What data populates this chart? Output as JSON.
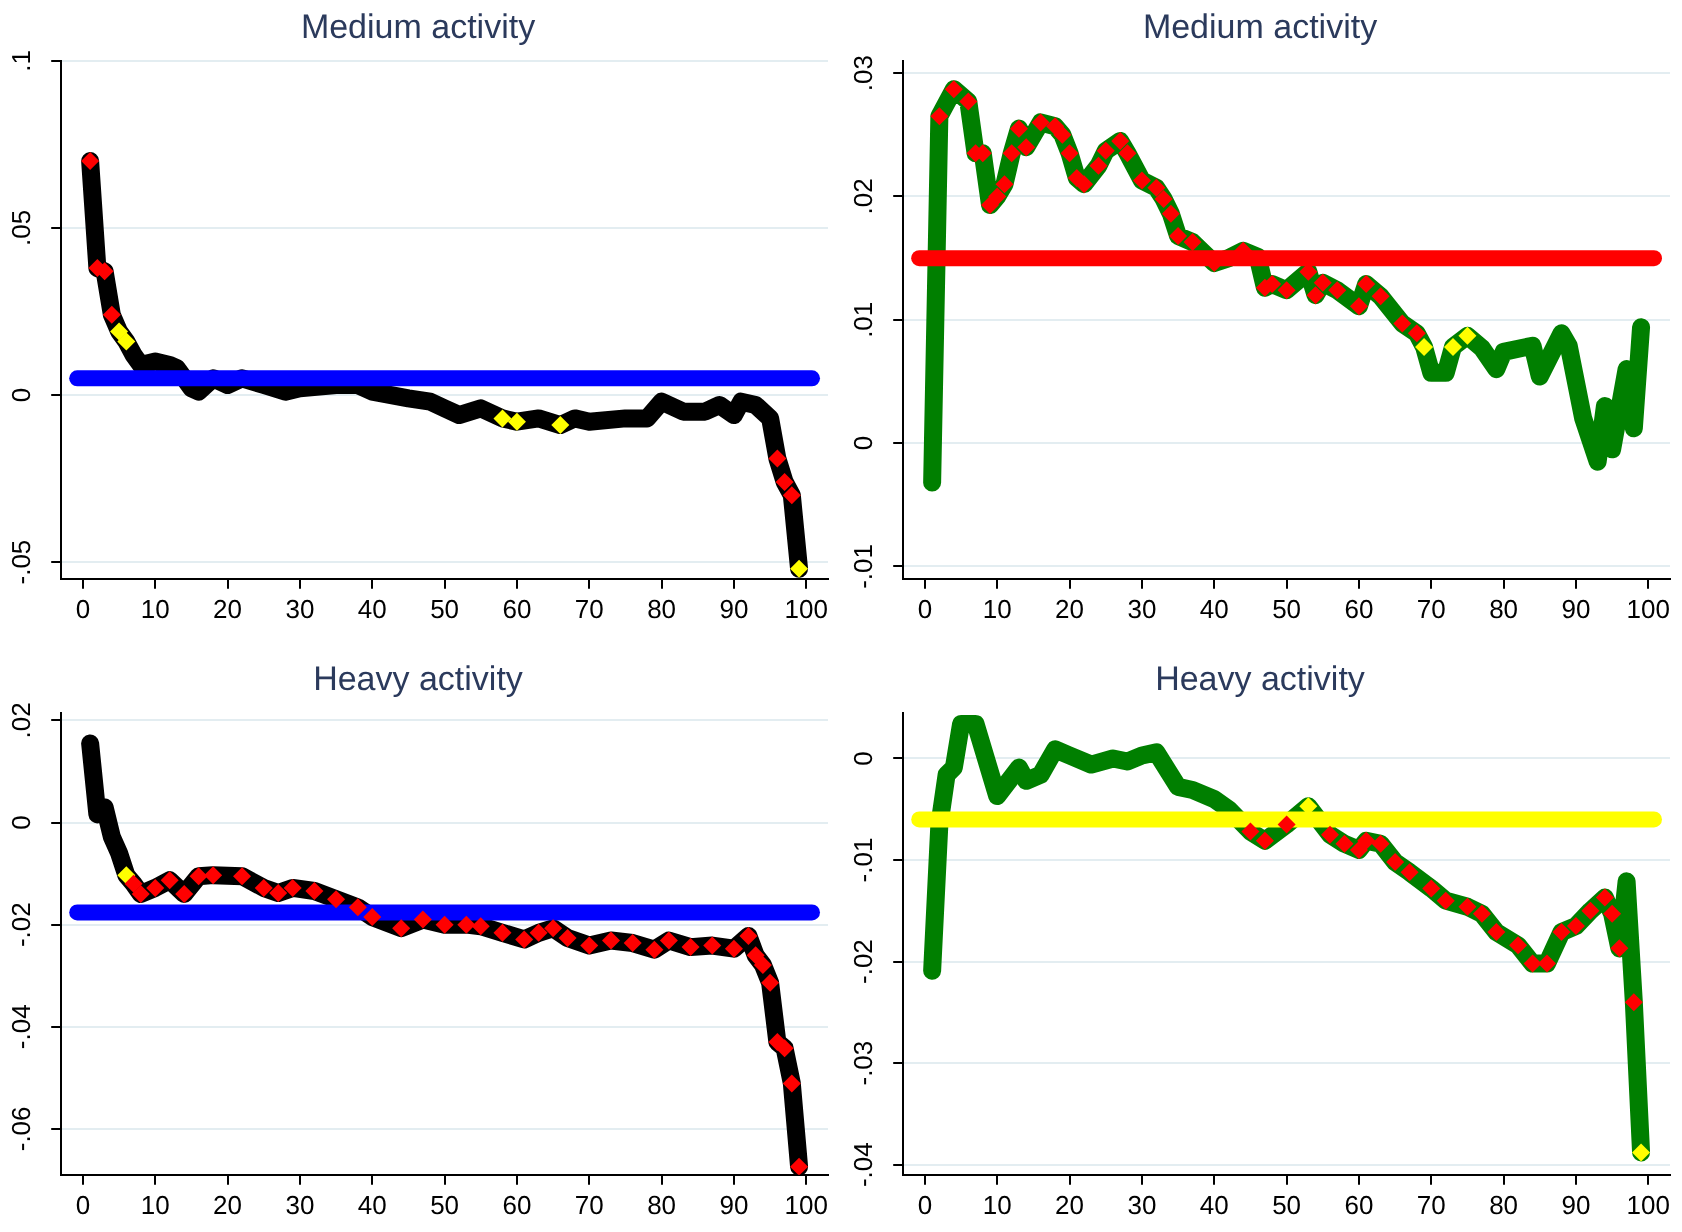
{
  "chart_data": [
    {
      "type": "line",
      "title": "Medium activity",
      "xlim": [
        -3,
        103
      ],
      "xticks": [
        0,
        10,
        20,
        30,
        40,
        50,
        60,
        70,
        80,
        90,
        100
      ],
      "ylim": [
        -0.055,
        0.1
      ],
      "yticks": [
        {
          "value": -0.05,
          "label": "-.05"
        },
        {
          "value": 0,
          "label": "0"
        },
        {
          "value": 0.05,
          "label": ".05"
        },
        {
          "value": 0.1,
          "label": ".1"
        }
      ],
      "grid": "y",
      "series": [
        {
          "type": "line",
          "marker": "none",
          "color": "#000000",
          "x": [
            1,
            2,
            3,
            4,
            5,
            6,
            7,
            8,
            10,
            12,
            13,
            15,
            16,
            18,
            20,
            22,
            25,
            28,
            30,
            35,
            38,
            40,
            45,
            48,
            50,
            52,
            55,
            58,
            60,
            63,
            66,
            68,
            70,
            75,
            78,
            80,
            83,
            86,
            88,
            90,
            91,
            93,
            95,
            96,
            97,
            98,
            99
          ],
          "values": [
            0.07,
            0.038,
            0.037,
            0.024,
            0.019,
            0.016,
            0.012,
            0.009,
            0.01,
            0.009,
            0.008,
            0.002,
            0.001,
            0.005,
            0.003,
            0.005,
            0.003,
            0.001,
            0.002,
            0.003,
            0.003,
            0.001,
            -0.001,
            -0.002,
            -0.004,
            -0.006,
            -0.004,
            -0.007,
            -0.008,
            -0.007,
            -0.009,
            -0.007,
            -0.008,
            -0.007,
            -0.007,
            -0.002,
            -0.005,
            -0.005,
            -0.003,
            -0.006,
            -0.002,
            -0.003,
            -0.007,
            -0.019,
            -0.026,
            -0.03,
            -0.052
          ]
        },
        {
          "type": "scatter",
          "marker": "diamond",
          "color": "#ff0000",
          "x": [
            1,
            2,
            3,
            4,
            96,
            97,
            98
          ],
          "values": [
            0.07,
            0.038,
            0.037,
            0.024,
            -0.019,
            -0.026,
            -0.03
          ]
        },
        {
          "type": "scatter",
          "marker": "diamond",
          "color": "#ffff00",
          "x": [
            5,
            6,
            58,
            60,
            66,
            99
          ],
          "values": [
            0.019,
            0.016,
            -0.007,
            -0.008,
            -0.009,
            -0.052
          ]
        }
      ],
      "ref_lines": [
        {
          "axis": "y",
          "value": 0.005,
          "color": "#0000ff"
        }
      ]
    },
    {
      "type": "line",
      "title": "Medium activity",
      "xlim": [
        -3,
        103
      ],
      "xticks": [
        0,
        10,
        20,
        30,
        40,
        50,
        60,
        70,
        80,
        90,
        100
      ],
      "ylim": [
        -0.011,
        0.031
      ],
      "yticks": [
        {
          "value": -0.01,
          "label": "-.01"
        },
        {
          "value": 0,
          "label": "0"
        },
        {
          "value": 0.01,
          "label": ".01"
        },
        {
          "value": 0.02,
          "label": ".02"
        },
        {
          "value": 0.03,
          "label": ".03"
        }
      ],
      "grid": "y",
      "series": [
        {
          "type": "line",
          "marker": "none",
          "color": "#007f00",
          "x": [
            1,
            2,
            4,
            6,
            7,
            8,
            9,
            10,
            11,
            12,
            13,
            14,
            16,
            18,
            19,
            20,
            21,
            22,
            24,
            25,
            27,
            28,
            30,
            32,
            33,
            34,
            35,
            37,
            40,
            42,
            44,
            46,
            47,
            48,
            50,
            53,
            54,
            55,
            57,
            60,
            61,
            63,
            66,
            68,
            69,
            70,
            72,
            73,
            75,
            77,
            79,
            80,
            84,
            85,
            88,
            89,
            91,
            93,
            94,
            95,
            97,
            98,
            99
          ],
          "values": [
            -0.0032,
            0.0265,
            0.0287,
            0.0277,
            0.0235,
            0.0235,
            0.0193,
            0.02,
            0.021,
            0.0235,
            0.0255,
            0.024,
            0.026,
            0.0257,
            0.025,
            0.0235,
            0.0215,
            0.021,
            0.0225,
            0.0237,
            0.0245,
            0.0235,
            0.0213,
            0.0207,
            0.0198,
            0.0186,
            0.0168,
            0.0163,
            0.0146,
            0.015,
            0.0156,
            0.0151,
            0.0126,
            0.0129,
            0.0124,
            0.0139,
            0.012,
            0.013,
            0.0124,
            0.0111,
            0.0129,
            0.0119,
            0.0097,
            0.0089,
            0.0078,
            0.0057,
            0.0057,
            0.0078,
            0.0087,
            0.0077,
            0.006,
            0.0074,
            0.0079,
            0.0054,
            0.0089,
            0.0079,
            0.002,
            -0.0015,
            0.003,
            -0.0005,
            0.006,
            0.0012,
            0.0094
          ]
        },
        {
          "type": "scatter",
          "marker": "diamond",
          "color": "#ff0000",
          "x": [
            2,
            4,
            6,
            7,
            8,
            9,
            10,
            11,
            12,
            13,
            14,
            16,
            18,
            19,
            20,
            21,
            22,
            24,
            25,
            27,
            28,
            30,
            32,
            33,
            34,
            35,
            37,
            40,
            44,
            47,
            48,
            50,
            53,
            54,
            55,
            57,
            60,
            61,
            63,
            66,
            68
          ],
          "values": [
            0.0265,
            0.0287,
            0.0277,
            0.0235,
            0.0235,
            0.0193,
            0.02,
            0.021,
            0.0235,
            0.0255,
            0.024,
            0.026,
            0.0257,
            0.025,
            0.0235,
            0.0215,
            0.021,
            0.0225,
            0.0237,
            0.0245,
            0.0235,
            0.0213,
            0.0207,
            0.0198,
            0.0186,
            0.0168,
            0.0163,
            0.0146,
            0.0156,
            0.0126,
            0.0129,
            0.0124,
            0.0139,
            0.012,
            0.013,
            0.0124,
            0.0111,
            0.0129,
            0.0119,
            0.0097,
            0.0089
          ]
        },
        {
          "type": "scatter",
          "marker": "diamond",
          "color": "#ffff00",
          "x": [
            69,
            73,
            75
          ],
          "values": [
            0.0078,
            0.0078,
            0.0087
          ]
        }
      ],
      "ref_lines": [
        {
          "axis": "y",
          "value": 0.015,
          "color": "#ff0000"
        }
      ]
    },
    {
      "type": "line",
      "title": "Heavy activity",
      "xlim": [
        -3,
        103
      ],
      "xticks": [
        0,
        10,
        20,
        30,
        40,
        50,
        60,
        70,
        80,
        90,
        100
      ],
      "ylim": [
        -0.069,
        0.0215
      ],
      "yticks": [
        {
          "value": -0.06,
          "label": "-.06"
        },
        {
          "value": -0.04,
          "label": "-.04"
        },
        {
          "value": -0.02,
          "label": "-.02"
        },
        {
          "value": 0,
          "label": "0"
        },
        {
          "value": 0.02,
          "label": ".02"
        }
      ],
      "grid": "y",
      "series": [
        {
          "type": "line",
          "marker": "none",
          "color": "#000000",
          "x": [
            1,
            2,
            3,
            4,
            5,
            6,
            7,
            8,
            10,
            12,
            14,
            16,
            18,
            22,
            25,
            27,
            29,
            32,
            35,
            38,
            40,
            44,
            47,
            50,
            53,
            55,
            58,
            61,
            63,
            65,
            67,
            70,
            73,
            76,
            79,
            81,
            84,
            87,
            90,
            92,
            93,
            94,
            95,
            96,
            97,
            98,
            99
          ],
          "values": [
            0.0155,
            0.0016,
            0.003,
            -0.0028,
            -0.006,
            -0.0103,
            -0.012,
            -0.014,
            -0.0128,
            -0.0113,
            -0.014,
            -0.0105,
            -0.0103,
            -0.0105,
            -0.0128,
            -0.0138,
            -0.0128,
            -0.0134,
            -0.015,
            -0.0166,
            -0.0185,
            -0.0207,
            -0.019,
            -0.02,
            -0.02,
            -0.0203,
            -0.0216,
            -0.0229,
            -0.0216,
            -0.0207,
            -0.0226,
            -0.0241,
            -0.0231,
            -0.0236,
            -0.0249,
            -0.0231,
            -0.0244,
            -0.0241,
            -0.0247,
            -0.0222,
            -0.026,
            -0.0279,
            -0.0314,
            -0.043,
            -0.0442,
            -0.0511,
            -0.0674
          ]
        },
        {
          "type": "scatter",
          "marker": "diamond",
          "color": "#ff0000",
          "x": [
            7,
            8,
            10,
            12,
            14,
            16,
            18,
            22,
            25,
            27,
            29,
            32,
            35,
            38,
            40,
            44,
            47,
            50,
            53,
            55,
            58,
            61,
            63,
            65,
            67,
            70,
            73,
            76,
            79,
            81,
            84,
            87,
            90,
            92,
            93,
            94,
            95,
            96,
            97,
            98,
            99
          ],
          "values": [
            -0.012,
            -0.014,
            -0.0128,
            -0.0113,
            -0.014,
            -0.0105,
            -0.0103,
            -0.0105,
            -0.0128,
            -0.0138,
            -0.0128,
            -0.0134,
            -0.015,
            -0.0166,
            -0.0185,
            -0.0207,
            -0.019,
            -0.02,
            -0.02,
            -0.0203,
            -0.0216,
            -0.0229,
            -0.0216,
            -0.0207,
            -0.0226,
            -0.0241,
            -0.0231,
            -0.0236,
            -0.0249,
            -0.0231,
            -0.0244,
            -0.0241,
            -0.0247,
            -0.0222,
            -0.026,
            -0.0279,
            -0.0314,
            -0.043,
            -0.0442,
            -0.0511,
            -0.0674
          ]
        },
        {
          "type": "scatter",
          "marker": "diamond",
          "color": "#ffff00",
          "x": [
            6
          ],
          "values": [
            -0.0103
          ]
        }
      ],
      "ref_lines": [
        {
          "axis": "y",
          "value": -0.0176,
          "color": "#0000ff"
        }
      ]
    },
    {
      "type": "line",
      "title": "Heavy activity",
      "xlim": [
        -3,
        103
      ],
      "xticks": [
        0,
        10,
        20,
        30,
        40,
        50,
        60,
        70,
        80,
        90,
        100
      ],
      "ylim": [
        -0.041,
        0.0045
      ],
      "yticks": [
        {
          "value": -0.04,
          "label": "-.04"
        },
        {
          "value": -0.03,
          "label": "-.03"
        },
        {
          "value": -0.02,
          "label": "-.02"
        },
        {
          "value": -0.01,
          "label": "-.01"
        },
        {
          "value": 0,
          "label": "0"
        }
      ],
      "grid": "y",
      "series": [
        {
          "type": "line",
          "marker": "none",
          "color": "#007f00",
          "x": [
            1,
            2,
            3,
            4,
            5,
            7,
            10,
            13,
            14,
            16,
            18,
            20,
            23,
            26,
            28,
            30,
            32,
            35,
            37,
            40,
            42,
            45,
            47,
            50,
            53,
            56,
            58,
            60,
            61,
            63,
            65,
            67,
            70,
            72,
            75,
            77,
            79,
            82,
            84,
            86,
            88,
            90,
            92,
            94,
            95,
            96,
            97,
            98,
            99
          ],
          "values": [
            -0.0209,
            -0.0065,
            -0.0016,
            -0.0009,
            0.0034,
            0.0034,
            -0.0037,
            -0.0009,
            -0.0022,
            -0.0016,
            0.0009,
            0.0003,
            -0.0006,
            0,
            -0.0003,
            0.0003,
            0.0006,
            -0.0028,
            -0.0031,
            -0.004,
            -0.005,
            -0.0072,
            -0.0081,
            -0.0065,
            -0.0047,
            -0.0075,
            -0.0084,
            -0.009,
            -0.0081,
            -0.0084,
            -0.0102,
            -0.0112,
            -0.0128,
            -0.014,
            -0.0146,
            -0.0153,
            -0.0171,
            -0.0184,
            -0.0202,
            -0.0202,
            -0.0171,
            -0.0165,
            -0.015,
            -0.0137,
            -0.0153,
            -0.0187,
            -0.0121,
            -0.024,
            -0.0388
          ]
        },
        {
          "type": "scatter",
          "marker": "diamond",
          "color": "#ff0000",
          "x": [
            45,
            47,
            50,
            56,
            58,
            60,
            61,
            63,
            65,
            67,
            70,
            72,
            75,
            77,
            79,
            82,
            84,
            86,
            88,
            90,
            92,
            94,
            95,
            96,
            98
          ],
          "values": [
            -0.0072,
            -0.0081,
            -0.0065,
            -0.0075,
            -0.0084,
            -0.009,
            -0.0081,
            -0.0084,
            -0.0102,
            -0.0112,
            -0.0128,
            -0.014,
            -0.0146,
            -0.0153,
            -0.0171,
            -0.0184,
            -0.0202,
            -0.0202,
            -0.0171,
            -0.0165,
            -0.015,
            -0.0137,
            -0.0153,
            -0.0187,
            -0.024
          ]
        },
        {
          "type": "scatter",
          "marker": "diamond",
          "color": "#ffff00",
          "x": [
            53,
            99
          ],
          "values": [
            -0.0047,
            -0.0388
          ]
        }
      ],
      "ref_lines": [
        {
          "axis": "y",
          "value": -0.006,
          "color": "#ffff00"
        }
      ]
    }
  ]
}
